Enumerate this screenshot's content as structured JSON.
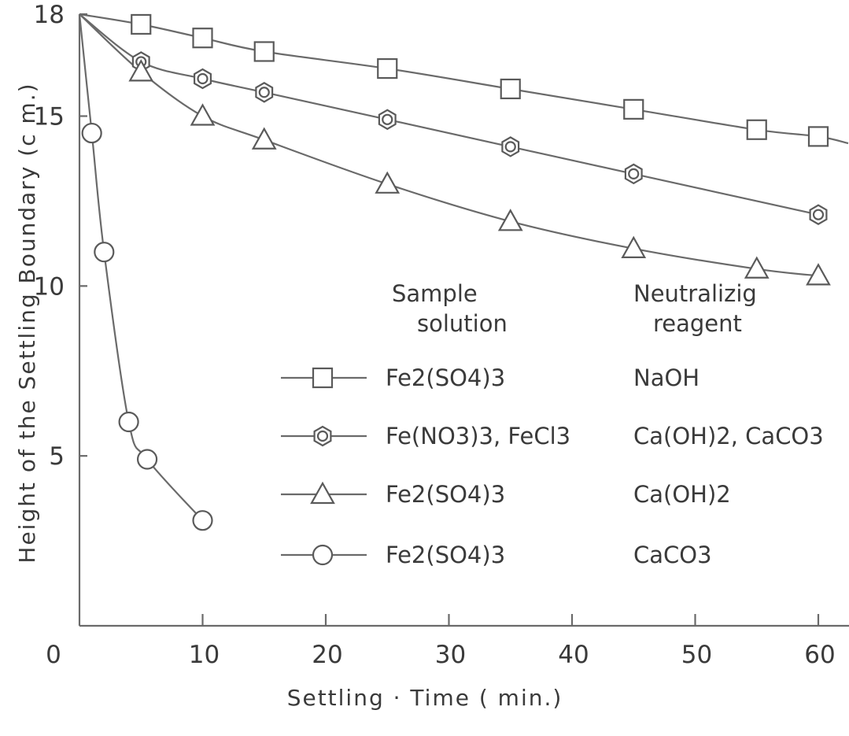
{
  "chart_data": {
    "type": "line",
    "xlabel": "Settling · Time ( min.)",
    "ylabel": "Height of the Settling Boundary (c m.)",
    "xlim": [
      0,
      62
    ],
    "ylim": [
      0,
      18
    ],
    "x_ticks": [
      0,
      10,
      20,
      30,
      40,
      50,
      60
    ],
    "y_ticks": [
      5,
      10,
      15,
      18
    ],
    "grid": false,
    "legend_position": "center-right",
    "legend_headers": {
      "sample": "Sample\nsolution",
      "reagent": "Neutralizig\nreagent"
    },
    "series": [
      {
        "marker": "square",
        "sample": "Fe2(SO4)3",
        "reagent": "NaOH",
        "x": [
          0,
          5,
          10,
          15,
          25,
          35,
          45,
          55,
          60
        ],
        "y": [
          18.0,
          17.7,
          17.3,
          16.9,
          16.4,
          15.8,
          15.2,
          14.6,
          14.4
        ],
        "line_x_end": 62.5,
        "line_y_end": 14.2
      },
      {
        "marker": "hexagon",
        "sample": "Fe(NO3)3, FeCl3",
        "reagent": "Ca(OH)2, CaCO3",
        "x": [
          0,
          5,
          10,
          15,
          25,
          35,
          45,
          60
        ],
        "y": [
          18.0,
          16.6,
          16.1,
          15.7,
          14.9,
          14.1,
          13.3,
          12.1
        ]
      },
      {
        "marker": "triangle",
        "sample": "Fe2(SO4)3",
        "reagent": "Ca(OH)2",
        "x": [
          0,
          5,
          10,
          15,
          25,
          35,
          45,
          55,
          60
        ],
        "y": [
          18.0,
          16.3,
          15.0,
          14.3,
          13.0,
          11.9,
          11.1,
          10.5,
          10.3
        ]
      },
      {
        "marker": "circle",
        "sample": "Fe2(SO4)3",
        "reagent": "CaCO3",
        "x": [
          0,
          1,
          2,
          4,
          5.5,
          10
        ],
        "y": [
          18.0,
          14.5,
          11.0,
          6.0,
          4.9,
          3.1
        ]
      }
    ]
  }
}
